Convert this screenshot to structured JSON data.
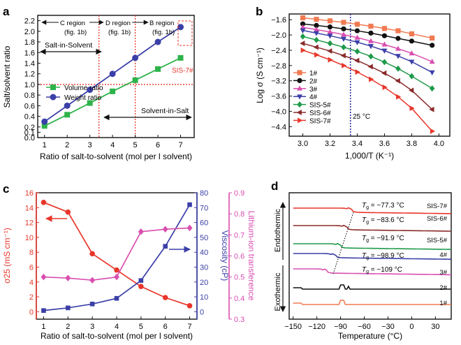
{
  "chart_data": [
    {
      "panel": "a",
      "type": "line",
      "xlabel": "Ratio of salt-to-solvent (mol per l solvent)",
      "ylabel": "Salt/solvent ratio",
      "xlim": [
        0.7,
        7.6
      ],
      "ylim": [
        0.0,
        2.3
      ],
      "xticks": [
        "1",
        "2",
        "3",
        "4",
        "5",
        "6",
        "7"
      ],
      "yticks": [
        "0.0",
        "0.1",
        "0.2",
        "0.4",
        "0.6",
        "0.8",
        "1.0",
        "1.2",
        "1.4",
        "1.6",
        "1.8",
        "2.0",
        "2.2"
      ],
      "x": [
        1,
        2,
        3,
        4,
        5,
        6,
        7
      ],
      "series": [
        {
          "name": "Volume ratio",
          "color": "#2db34a",
          "marker": "square",
          "values": [
            0.22,
            0.43,
            0.65,
            0.87,
            1.08,
            1.29,
            1.5
          ]
        },
        {
          "name": "Weight ratio",
          "color": "#3b3fa8",
          "marker": "circle",
          "values": [
            0.3,
            0.6,
            0.9,
            1.2,
            1.5,
            1.8,
            2.08
          ]
        }
      ],
      "reference_lines": {
        "horizontal_y": 1.0,
        "vertical_x": [
          3.4,
          5.0
        ]
      },
      "annotations": {
        "c_region": "C region",
        "c_region_fig": "(fig. 1b)",
        "d_region": "D region",
        "d_region_fig": "(fig. 1b)",
        "b_region": "B region",
        "b_region_fig": "(fig. 1b)",
        "salt_in_solvent": "Salt-in-Solvent",
        "solvent_in_salt": "Solvent-in-Salt",
        "sis7": "SIS-7#"
      }
    },
    {
      "panel": "b",
      "type": "line",
      "xlabel": "1,000/T (K⁻¹)",
      "ylabel": "Log σ (S cm⁻¹)",
      "xlim": [
        2.9,
        4.08
      ],
      "ylim": [
        -4.65,
        -1.45
      ],
      "xticks": [
        "3.0",
        "3.2",
        "3.4",
        "3.6",
        "3.8",
        "4.0"
      ],
      "yticks": [
        "-1.6",
        "-2.0",
        "-2.4",
        "-2.8",
        "-3.2",
        "-3.6",
        "-4.0",
        "-4.4"
      ],
      "x": [
        3.0,
        3.1,
        3.2,
        3.3,
        3.4,
        3.5,
        3.6,
        3.7,
        3.8,
        3.95
      ],
      "series": [
        {
          "name": "1#",
          "color": "#f07a52",
          "marker": "square",
          "values": [
            -1.55,
            -1.59,
            -1.63,
            -1.67,
            -1.72,
            -1.77,
            -1.83,
            -1.89,
            -1.97,
            -2.08
          ]
        },
        {
          "name": "2#",
          "color": "#111111",
          "marker": "circle",
          "values": [
            -1.71,
            -1.75,
            -1.79,
            -1.84,
            -1.89,
            -1.95,
            -2.02,
            -2.09,
            -2.16,
            -2.27
          ]
        },
        {
          "name": "3#",
          "color": "#d94fb0",
          "marker": "triangle-up",
          "values": [
            -1.8,
            -1.86,
            -1.92,
            -1.99,
            -2.07,
            -2.16,
            -2.25,
            -2.36,
            -2.48,
            -2.7
          ]
        },
        {
          "name": "4#",
          "color": "#3b3fa8",
          "marker": "triangle-down",
          "values": [
            -1.88,
            -1.95,
            -2.02,
            -2.1,
            -2.19,
            -2.29,
            -2.41,
            -2.55,
            -2.7,
            -2.98
          ]
        },
        {
          "name": "SIS-5#",
          "color": "#1f9a4a",
          "marker": "diamond",
          "values": [
            -2.04,
            -2.13,
            -2.22,
            -2.32,
            -2.43,
            -2.56,
            -2.71,
            -2.88,
            -3.08,
            -3.4
          ]
        },
        {
          "name": "SIS-6#",
          "color": "#8a2b2b",
          "marker": "triangle-left",
          "values": [
            -2.22,
            -2.32,
            -2.42,
            -2.54,
            -2.67,
            -2.83,
            -3.0,
            -3.2,
            -3.45,
            -3.95
          ]
        },
        {
          "name": "SIS-7#",
          "color": "#e8362a",
          "marker": "triangle-right",
          "values": [
            -2.4,
            -2.52,
            -2.65,
            -2.8,
            -2.97,
            -3.16,
            -3.37,
            -3.62,
            -3.92,
            -4.52
          ]
        }
      ],
      "vline_x": 3.35,
      "vline_label": "25 °C",
      "legend": "left"
    },
    {
      "panel": "c",
      "type": "line",
      "xlabel": "Ratio of salt-to-solvent (mol per l solvent)",
      "ylabel_left": "σ25 (mS cm⁻¹)",
      "ylabel_right1": "Viscosity (cP)",
      "ylabel_right2": "Lithium-ion transference",
      "xlim": [
        0.7,
        7.3
      ],
      "ylim_left": [
        -1,
        16
      ],
      "ylim_viscosity": [
        -5,
        80
      ],
      "ylim_transference": [
        0.3,
        0.9
      ],
      "xticks": [
        "1",
        "2",
        "3",
        "4",
        "5",
        "6",
        "7"
      ],
      "yticks_left": [
        "0",
        "2",
        "4",
        "6",
        "8",
        "10",
        "12",
        "14",
        "16"
      ],
      "yticks_viscosity": [
        "0",
        "10",
        "20",
        "30",
        "40",
        "50",
        "60",
        "70",
        "80"
      ],
      "yticks_transference": [
        "0.3",
        "0.4",
        "0.5",
        "0.6",
        "0.7",
        "0.8",
        "0.9"
      ],
      "x": [
        1,
        2,
        3,
        4,
        5,
        6,
        7
      ],
      "series": [
        {
          "name": "σ25",
          "axis": "left",
          "color": "#e8362a",
          "marker": "circle",
          "values": [
            14.7,
            13.4,
            7.8,
            5.6,
            3.4,
            1.9,
            0.8
          ]
        },
        {
          "name": "Viscosity",
          "axis": "viscosity",
          "color": "#3b3fa8",
          "marker": "square",
          "values": [
            0.8,
            2.6,
            5.2,
            9.0,
            21.0,
            44.0,
            72.0
          ]
        },
        {
          "name": "Lithium-ion transference",
          "axis": "transference",
          "color": "#d94fb0",
          "marker": "diamond",
          "values": [
            0.5,
            0.495,
            0.485,
            0.5,
            0.715,
            0.727,
            0.733
          ]
        }
      ]
    },
    {
      "panel": "d",
      "type": "line",
      "xlabel": "Temperature (°C)",
      "xlim": [
        -155,
        50
      ],
      "xticks": [
        "-150",
        "-120",
        "-90",
        "-60",
        "-30",
        "0",
        "30"
      ],
      "side_top": "Endothermic",
      "side_bottom": "Exothermic",
      "curves": [
        {
          "name": "1#",
          "color": "#f07a52"
        },
        {
          "name": "2#",
          "color": "#111111"
        },
        {
          "name": "3#",
          "color": "#d94fb0"
        },
        {
          "name": "4#",
          "color": "#3b3fa8"
        },
        {
          "name": "SIS-5#",
          "color": "#1f9a4a"
        },
        {
          "name": "SIS-6#",
          "color": "#8a2b2b"
        },
        {
          "name": "SIS-7#",
          "color": "#e8362a"
        }
      ],
      "tg_labels": [
        {
          "curve": "SIS-7#",
          "tg": "−77.3 °C",
          "t": -77.3
        },
        {
          "curve": "SIS-6#",
          "tg": "−83.6 °C",
          "t": -83.6
        },
        {
          "curve": "SIS-5#",
          "tg": "−91.9 °C",
          "t": -91.9
        },
        {
          "curve": "4#",
          "tg": "−98.9 °C",
          "t": -98.9
        },
        {
          "curve": "3#",
          "tg": "−109 °C",
          "t": -109
        }
      ],
      "tg_symbol": "T",
      "tg_subscript": "g",
      "tg_equals": " = "
    }
  ],
  "panel_labels": [
    "a",
    "b",
    "c",
    "d"
  ]
}
